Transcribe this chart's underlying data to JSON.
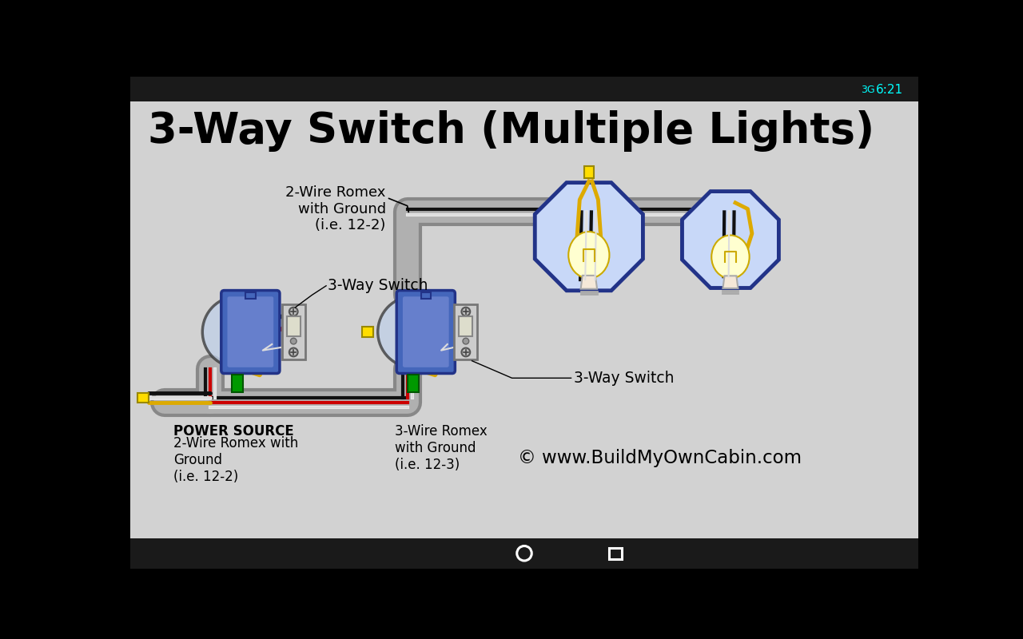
{
  "title": "3-Way Switch (Multiple Lights)",
  "bg_color": "#d2d2d2",
  "title_fontsize": 38,
  "copyright": "© www.BuildMyOwnCabin.com",
  "label_2wire_romex": "2-Wire Romex\nwith Ground\n(i.e. 12-2)",
  "label_3wire_romex": "3-Wire Romex\nwith Ground\n(i.e. 12-3)",
  "label_3way_switch1": "3-Way Switch",
  "label_3way_switch2": "3-Way Switch",
  "label_power_line1": "POWER SOURCE",
  "label_power_line2": "2-Wire Romex with\nGround\n(i.e. 12-2)",
  "conduit_color": "#b0b0b0",
  "conduit_edge": "#888888",
  "box_face": "#4466bb",
  "box_edge": "#223388",
  "light_face": "#c8d8f8",
  "light_edge": "#223388",
  "wire_black": "#111111",
  "wire_white": "#e8e8e8",
  "wire_red": "#cc0000",
  "wire_yellow": "#ddaa00",
  "wire_green": "#009900",
  "bulb_face": "#ffffd0",
  "bulb_edge": "#ccaa00",
  "cap_face": "#ffdd00",
  "cap_edge": "#998800",
  "sw_body_face": "#cccccc",
  "sw_body_edge": "#777777",
  "sw_toggle_face": "#ddddcc",
  "sw_screw_face": "#bbbbbb",
  "sw_screw_edge": "#555555"
}
